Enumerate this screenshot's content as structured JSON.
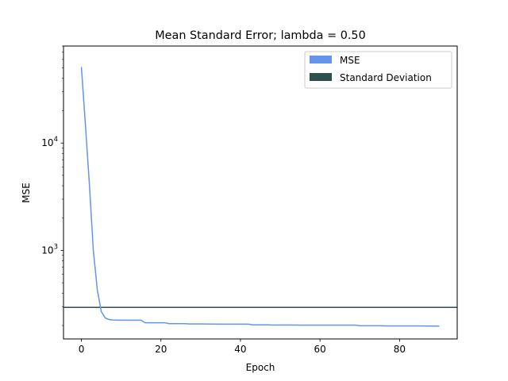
{
  "chart_data": {
    "type": "line",
    "title": "Mean Standard Error; lambda = 0.50",
    "xlabel": "Epoch",
    "ylabel": "MSE",
    "xlim": [
      -4.5,
      94.5
    ],
    "ylim": [
      150,
      80000
    ],
    "yscale": "log",
    "grid": false,
    "legend_position": "top-right",
    "x_ticks": [
      0,
      20,
      40,
      60,
      80
    ],
    "x_tick_labels": [
      "0",
      "20",
      "40",
      "60",
      "80"
    ],
    "y_ticks": [
      1000,
      10000
    ],
    "y_tick_labels": [
      {
        "base": "10",
        "exp": "3"
      },
      {
        "base": "10",
        "exp": "4"
      }
    ],
    "series": [
      {
        "name": "MSE",
        "color": "#6495ed",
        "points": [
          [
            0,
            51000
          ],
          [
            1,
            15000
          ],
          [
            2,
            4200
          ],
          [
            3,
            1000
          ],
          [
            4,
            430
          ],
          [
            5,
            270
          ],
          [
            6,
            235
          ],
          [
            7,
            227
          ],
          [
            8,
            225
          ],
          [
            9,
            224
          ],
          [
            10,
            224
          ],
          [
            11,
            224
          ],
          [
            12,
            224
          ],
          [
            13,
            224
          ],
          [
            14,
            224
          ],
          [
            15,
            224
          ],
          [
            16,
            212
          ],
          [
            17,
            212
          ],
          [
            18,
            212
          ],
          [
            19,
            212
          ],
          [
            20,
            212
          ],
          [
            21,
            212
          ],
          [
            22,
            208
          ],
          [
            23,
            208
          ],
          [
            24,
            208
          ],
          [
            25,
            208
          ],
          [
            26,
            208
          ],
          [
            27,
            207
          ],
          [
            30,
            207
          ],
          [
            35,
            206
          ],
          [
            40,
            206
          ],
          [
            42,
            206
          ],
          [
            43,
            203
          ],
          [
            47,
            203
          ],
          [
            48,
            202
          ],
          [
            54,
            202
          ],
          [
            55,
            201.5
          ],
          [
            60,
            201.5
          ],
          [
            65,
            201.5
          ],
          [
            69,
            201.5
          ],
          [
            70,
            199
          ],
          [
            75,
            199
          ],
          [
            77,
            198
          ],
          [
            85,
            198
          ],
          [
            90,
            197.5
          ]
        ]
      },
      {
        "name": "Standard Deviation",
        "color": "#2f4f4f",
        "hline": 295
      }
    ]
  }
}
